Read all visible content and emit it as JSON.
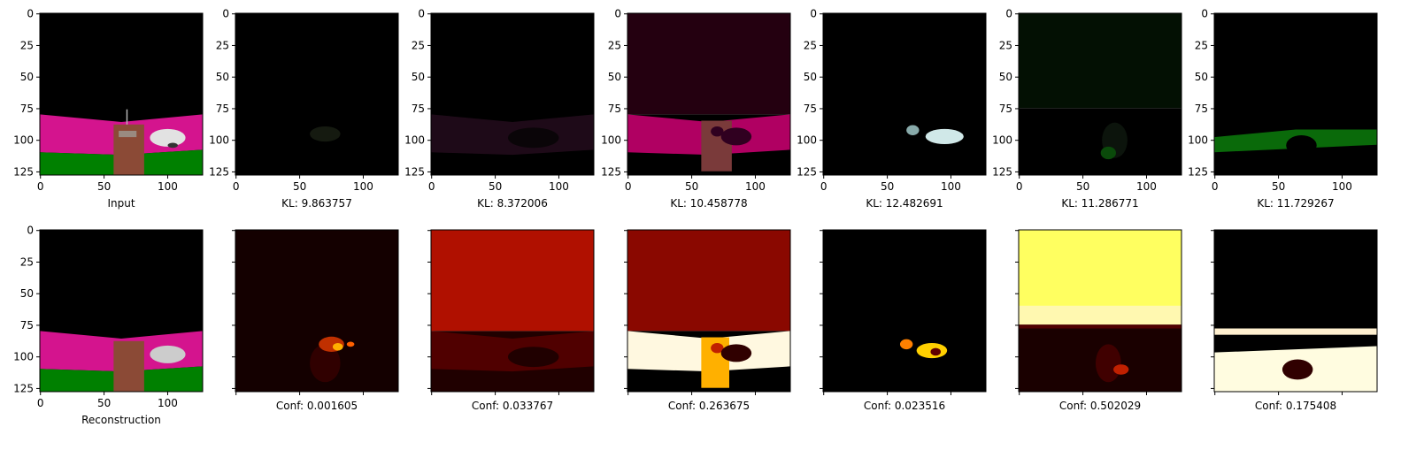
{
  "axes": {
    "lim": [
      -0.5,
      127.5
    ],
    "xticks": [
      0,
      50,
      100
    ],
    "yticks": [
      0,
      25,
      50,
      75,
      100,
      125
    ]
  },
  "top": [
    "Input",
    "KL: 9.863757",
    "KL: 8.372006",
    "KL: 10.458778",
    "KL: 12.482691",
    "KL: 11.286771",
    "KL: 11.729267"
  ],
  "bottom": [
    "Reconstruction",
    "Conf: 0.001605",
    "Conf: 0.033767",
    "Conf: 0.263675",
    "Conf: 0.023516",
    "Conf: 0.502029",
    "Conf: 0.175408"
  ]
}
